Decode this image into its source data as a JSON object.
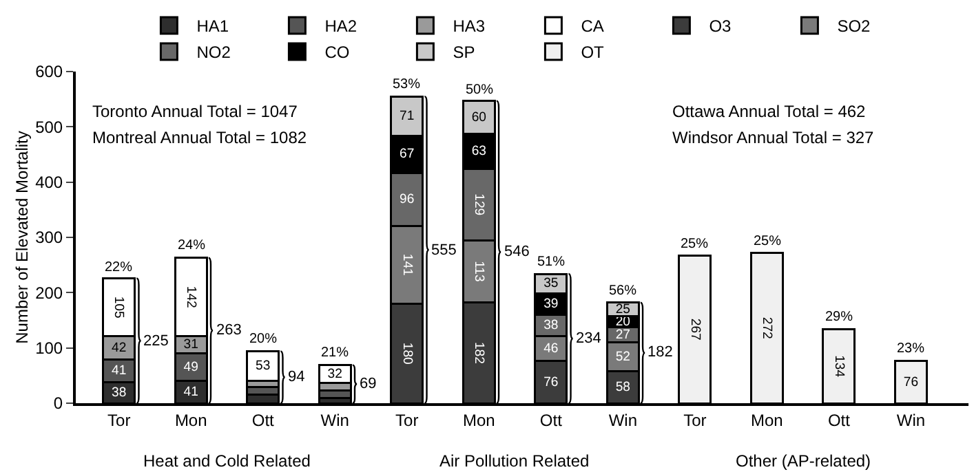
{
  "chart_data": {
    "type": "bar",
    "stacked": true,
    "legend": "top",
    "ylabel": "Number of Elevated Mortality",
    "ylim": [
      0,
      600
    ],
    "yticks": [
      0,
      100,
      200,
      300,
      400,
      500,
      600
    ],
    "grid": false,
    "categories": [
      "Tor",
      "Mon",
      "Ott",
      "Win",
      "Tor",
      "Mon",
      "Ott",
      "Win",
      "Tor",
      "Mon",
      "Ott",
      "Win"
    ],
    "series": [
      {
        "name": "HA1",
        "color": "#2e2e2e",
        "values": [
          38,
          41,
          15,
          9,
          null,
          null,
          null,
          null,
          null,
          null,
          null,
          null
        ],
        "value_labels": [
          "38",
          "41",
          null,
          null,
          null,
          null,
          null,
          null,
          null,
          null,
          null,
          null
        ]
      },
      {
        "name": "HA2",
        "color": "#555555",
        "values": [
          41,
          49,
          14,
          14,
          null,
          null,
          null,
          null,
          null,
          null,
          null,
          null
        ],
        "value_labels": [
          "41",
          "49",
          null,
          null,
          null,
          null,
          null,
          null,
          null,
          null,
          null,
          null
        ]
      },
      {
        "name": "HA3",
        "color": "#9a9a9a",
        "values": [
          42,
          31,
          12,
          14,
          null,
          null,
          null,
          null,
          null,
          null,
          null,
          null
        ],
        "value_labels": [
          "42",
          "31",
          null,
          null,
          null,
          null,
          null,
          null,
          null,
          null,
          null,
          null
        ]
      },
      {
        "name": "CA",
        "color": "#ffffff",
        "values": [
          105,
          142,
          53,
          32,
          null,
          null,
          null,
          null,
          null,
          null,
          null,
          null
        ],
        "value_labels": [
          "105",
          "142",
          "53",
          "32",
          null,
          null,
          null,
          null,
          null,
          null,
          null,
          null
        ]
      },
      {
        "name": "O3",
        "color": "#3c3c3c",
        "values": [
          null,
          null,
          null,
          null,
          180,
          182,
          76,
          58,
          null,
          null,
          null,
          null
        ],
        "value_labels": [
          null,
          null,
          null,
          null,
          "180",
          "182",
          "76",
          "58",
          null,
          null,
          null,
          null
        ]
      },
      {
        "name": "SO2",
        "color": "#7a7a7a",
        "values": [
          null,
          null,
          null,
          null,
          141,
          113,
          46,
          52,
          null,
          null,
          null,
          null
        ],
        "value_labels": [
          null,
          null,
          null,
          null,
          "141",
          "113",
          "46",
          "52",
          null,
          null,
          null,
          null
        ]
      },
      {
        "name": "NO2",
        "color": "#686868",
        "values": [
          null,
          null,
          null,
          null,
          96,
          129,
          38,
          27,
          null,
          null,
          null,
          null
        ],
        "value_labels": [
          null,
          null,
          null,
          null,
          "96",
          "129",
          "38",
          "27",
          null,
          null,
          null,
          null
        ]
      },
      {
        "name": "CO",
        "color": "#000000",
        "values": [
          null,
          null,
          null,
          null,
          67,
          63,
          39,
          20,
          null,
          null,
          null,
          null
        ],
        "value_labels": [
          null,
          null,
          null,
          null,
          "67",
          "63",
          "39",
          "20",
          null,
          null,
          null,
          null
        ]
      },
      {
        "name": "SP",
        "color": "#c8c8c8",
        "values": [
          null,
          null,
          null,
          null,
          71,
          60,
          35,
          25,
          null,
          null,
          null,
          null
        ],
        "value_labels": [
          null,
          null,
          null,
          null,
          "71",
          "60",
          "35",
          "25",
          null,
          null,
          null,
          null
        ]
      },
      {
        "name": "OT",
        "color": "#f0f0f0",
        "values": [
          null,
          null,
          null,
          null,
          null,
          null,
          null,
          null,
          267,
          272,
          134,
          76
        ],
        "value_labels": [
          null,
          null,
          null,
          null,
          null,
          null,
          null,
          null,
          "267",
          "272",
          "134",
          "76"
        ]
      }
    ],
    "totals": [
      "225",
      "263",
      "94",
      "69",
      "555",
      "546",
      "234",
      "182",
      null,
      null,
      null,
      null
    ],
    "annotations": [
      "Toronto Annual Total = 1047",
      "Montreal Annual Total = 1082",
      "Ottawa Annual Total = 462",
      "Windsor Annual Total = 327",
      "Heat and Cold Related",
      "Air Pollution Related",
      "Other (AP-related)",
      {
        "text": "22%",
        "y": 225
      },
      {
        "text": "24%",
        "y": 263
      },
      {
        "text": "20%",
        "y": 94
      },
      {
        "text": "21%",
        "y": 69
      },
      {
        "text": "53%",
        "y": 555
      },
      {
        "text": "50%",
        "y": 546
      },
      {
        "text": "51%",
        "y": 234
      },
      {
        "text": "56%",
        "y": 182
      },
      {
        "text": "25%",
        "y": 267
      },
      {
        "text": "25%",
        "y": 272
      },
      {
        "text": "29%",
        "y": 134
      },
      {
        "text": "23%",
        "y": 76
      }
    ]
  }
}
